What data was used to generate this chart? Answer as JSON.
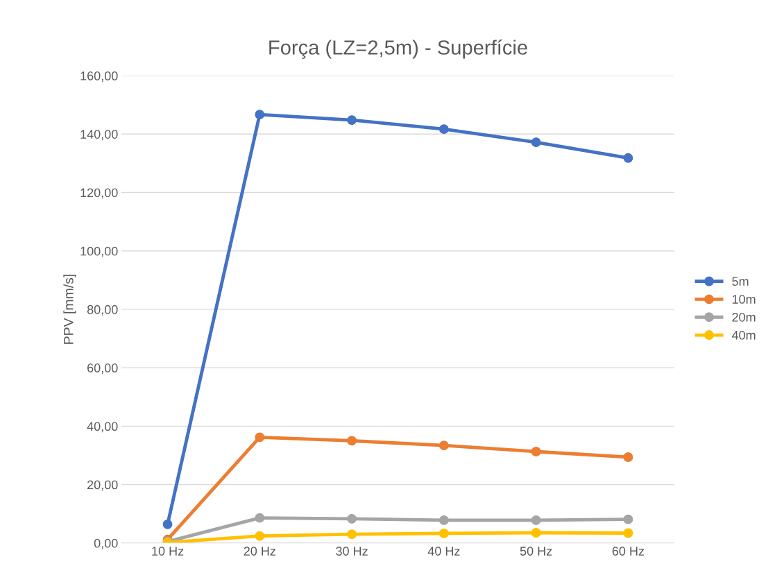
{
  "chart_data": {
    "type": "line",
    "title": "Força (LZ=2,5m) - Superfície",
    "ylabel": "PPV [mm/s]",
    "categories": [
      "10 Hz",
      "20 Hz",
      "30 Hz",
      "40 Hz",
      "50 Hz",
      "60 Hz"
    ],
    "series": [
      {
        "name": "5m",
        "color": "#4472c4",
        "values": [
          6.4,
          146.7,
          144.8,
          141.7,
          137.2,
          131.8
        ]
      },
      {
        "name": "10m",
        "color": "#ed7d31",
        "values": [
          1.2,
          36.2,
          35.0,
          33.4,
          31.3,
          29.4
        ]
      },
      {
        "name": "20m",
        "color": "#a5a5a5",
        "values": [
          0.5,
          8.6,
          8.3,
          7.8,
          7.8,
          8.1
        ]
      },
      {
        "name": "40m",
        "color": "#ffc000",
        "values": [
          0.2,
          2.4,
          3.0,
          3.3,
          3.5,
          3.4
        ]
      }
    ],
    "ylim": [
      0,
      160
    ],
    "yticks": [
      {
        "value": 0,
        "label": "0,00"
      },
      {
        "value": 20,
        "label": "20,00"
      },
      {
        "value": 40,
        "label": "40,00"
      },
      {
        "value": 60,
        "label": "60,00"
      },
      {
        "value": 80,
        "label": "80,00"
      },
      {
        "value": 100,
        "label": "100,00"
      },
      {
        "value": 120,
        "label": "120,00"
      },
      {
        "value": 140,
        "label": "140,00"
      },
      {
        "value": 160,
        "label": "160,00"
      }
    ],
    "grid": "y",
    "legend": "right",
    "marker": "circle",
    "line_style": "solid"
  }
}
